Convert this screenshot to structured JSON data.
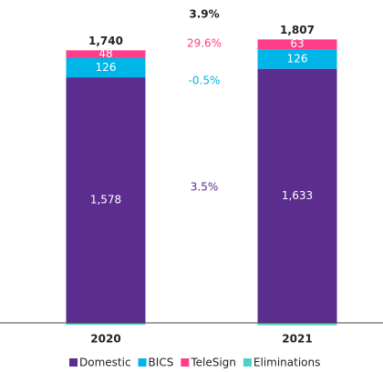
{
  "chart_data": {
    "type": "stacked_bar",
    "categories": [
      "2020",
      "2021"
    ],
    "series": [
      {
        "name": "Domestic",
        "color": "#5b2d8e",
        "values": [
          1578,
          1633
        ],
        "value_labels": [
          "1,578",
          "1,633"
        ]
      },
      {
        "name": "BICS",
        "color": "#00b5e8",
        "values": [
          126,
          126
        ]
      },
      {
        "name": "TeleSign",
        "color": "#ff3d8b",
        "values": [
          48,
          63
        ]
      },
      {
        "name": "Eliminations",
        "color": "#4fd1c5",
        "values": [
          -12,
          -15
        ]
      }
    ],
    "totals": [
      1740,
      1807
    ],
    "total_labels": [
      "1,740",
      "1,807"
    ],
    "annotations": [
      {
        "text": "3.9%",
        "color": "#222222"
      },
      {
        "text": "29.6%",
        "color": "#ff3d8b"
      },
      {
        "text": "-0.5%",
        "color": "#00b5e8"
      },
      {
        "text": "3.5%",
        "color": "#5b2d8e"
      }
    ],
    "ylim": [
      0,
      1900
    ]
  }
}
